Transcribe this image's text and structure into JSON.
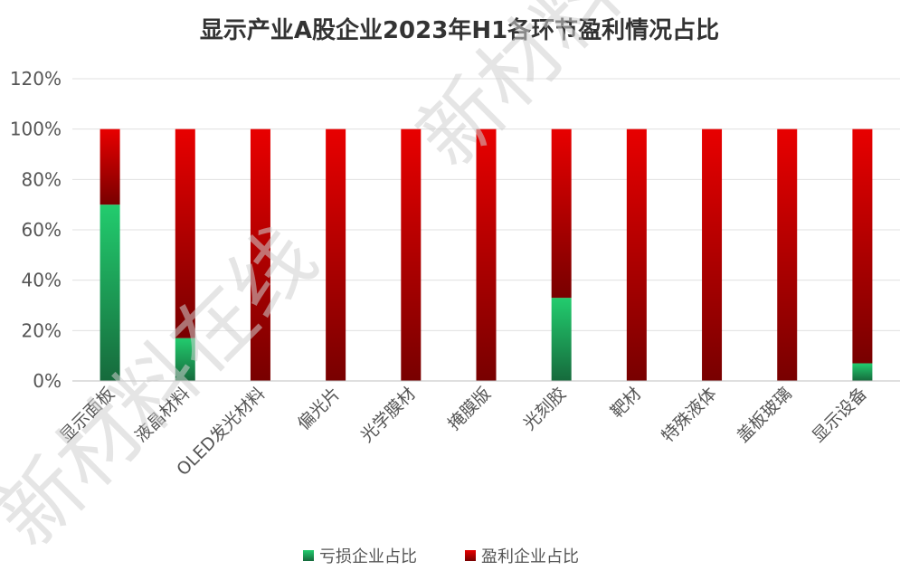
{
  "chart_data": {
    "type": "bar",
    "stacked": true,
    "title": "显示产业A股企业2023年H1各环节盈利情况占比",
    "categories": [
      "显示面板",
      "液晶材料",
      "OLED发光材料",
      "偏光片",
      "光学膜材",
      "掩膜版",
      "光刻胶",
      "靶材",
      "特殊液体",
      "盖板玻璃",
      "显示设备"
    ],
    "series": [
      {
        "name": "亏损企业占比",
        "values": [
          70,
          17,
          0,
          0,
          0,
          0,
          33,
          0,
          0,
          0,
          7
        ],
        "color": "#22c36a"
      },
      {
        "name": "盈利企业占比",
        "values": [
          30,
          83,
          100,
          100,
          100,
          100,
          67,
          100,
          100,
          100,
          93
        ],
        "color": "#e00000"
      }
    ],
    "ylim": [
      0,
      120
    ],
    "yticks": [
      "0%",
      "20%",
      "40%",
      "60%",
      "80%",
      "100%",
      "120%"
    ],
    "grid": true,
    "legend_position": "bottom",
    "watermark": "新材料在线"
  }
}
